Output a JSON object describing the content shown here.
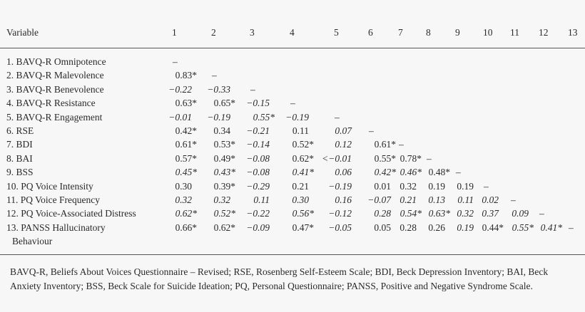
{
  "table": {
    "header_variable": "Variable",
    "column_headers": [
      "1",
      "2",
      "3",
      "4",
      "5",
      "6",
      "7",
      "8",
      "9",
      "10",
      "11",
      "12",
      "13"
    ],
    "rows": [
      {
        "label": "1. BAVQ-R Omnipotence",
        "cells": [
          {
            "v": "–",
            "i": false
          }
        ]
      },
      {
        "label": "2. BAVQ-R Malevolence",
        "cells": [
          {
            "v": "0.83*",
            "i": false
          },
          {
            "v": "–",
            "i": false
          }
        ]
      },
      {
        "label": "3. BAVQ-R Benevolence",
        "cells": [
          {
            "v": "−0.22",
            "i": true
          },
          {
            "v": "−0.33",
            "i": true
          },
          {
            "v": "–",
            "i": false
          }
        ]
      },
      {
        "label": "4. BAVQ-R Resistance",
        "cells": [
          {
            "v": "0.63*",
            "i": false
          },
          {
            "v": "0.65*",
            "i": false
          },
          {
            "v": "−0.15",
            "i": true
          },
          {
            "v": "–",
            "i": false
          }
        ]
      },
      {
        "label": "5. BAVQ-R Engagement",
        "cells": [
          {
            "v": "−0.01",
            "i": true
          },
          {
            "v": "−0.19",
            "i": true
          },
          {
            "v": "0.55*",
            "i": true
          },
          {
            "v": "−0.19",
            "i": true
          },
          {
            "v": "–",
            "i": false
          }
        ]
      },
      {
        "label": "6. RSE",
        "cells": [
          {
            "v": "0.42*",
            "i": false
          },
          {
            "v": "0.34",
            "i": false
          },
          {
            "v": "−0.21",
            "i": true
          },
          {
            "v": "0.11",
            "i": false
          },
          {
            "v": "0.07",
            "i": true
          },
          {
            "v": "–",
            "i": false
          }
        ]
      },
      {
        "label": "7. BDI",
        "cells": [
          {
            "v": "0.61*",
            "i": false
          },
          {
            "v": "0.53*",
            "i": false
          },
          {
            "v": "−0.14",
            "i": true
          },
          {
            "v": "0.52*",
            "i": false
          },
          {
            "v": "0.12",
            "i": true
          },
          {
            "v": "0.61*",
            "i": false
          },
          {
            "v": "–",
            "i": false
          }
        ]
      },
      {
        "label": "8. BAI",
        "cells": [
          {
            "v": "0.57*",
            "i": false
          },
          {
            "v": "0.49*",
            "i": false
          },
          {
            "v": "−0.08",
            "i": true
          },
          {
            "v": "0.62*",
            "i": false
          },
          {
            "v": "<−0.01",
            "i": true
          },
          {
            "v": "0.55*",
            "i": false
          },
          {
            "v": "0.78*",
            "i": false
          },
          {
            "v": "–",
            "i": false
          }
        ]
      },
      {
        "label": "9. BSS",
        "cells": [
          {
            "v": "0.45*",
            "i": true
          },
          {
            "v": "0.43*",
            "i": true
          },
          {
            "v": "−0.08",
            "i": true
          },
          {
            "v": "0.41*",
            "i": true
          },
          {
            "v": "0.06",
            "i": true
          },
          {
            "v": "0.42*",
            "i": true
          },
          {
            "v": "0.46*",
            "i": true
          },
          {
            "v": "0.48*",
            "i": false
          },
          {
            "v": "–",
            "i": false
          }
        ]
      },
      {
        "label": "10. PQ Voice Intensity",
        "cells": [
          {
            "v": "0.30",
            "i": false
          },
          {
            "v": "0.39*",
            "i": false
          },
          {
            "v": "−0.29",
            "i": true
          },
          {
            "v": "0.21",
            "i": false
          },
          {
            "v": "−0.19",
            "i": true
          },
          {
            "v": "0.01",
            "i": false
          },
          {
            "v": "0.32",
            "i": false
          },
          {
            "v": "0.19",
            "i": false
          },
          {
            "v": "0.19",
            "i": false
          },
          {
            "v": "–",
            "i": false
          }
        ]
      },
      {
        "label": "11. PQ Voice Frequency",
        "cells": [
          {
            "v": "0.32",
            "i": true
          },
          {
            "v": "0.32",
            "i": true
          },
          {
            "v": "0.11",
            "i": true
          },
          {
            "v": "0.30",
            "i": true
          },
          {
            "v": "0.16",
            "i": true
          },
          {
            "v": "−0.07",
            "i": true
          },
          {
            "v": "0.21",
            "i": true
          },
          {
            "v": "0.13",
            "i": true
          },
          {
            "v": "0.11",
            "i": true
          },
          {
            "v": "0.02",
            "i": true
          },
          {
            "v": "–",
            "i": false
          }
        ]
      },
      {
        "label": "12. PQ Voice-Associated Distress",
        "cells": [
          {
            "v": "0.62*",
            "i": true
          },
          {
            "v": "0.52*",
            "i": true
          },
          {
            "v": "−0.22",
            "i": true
          },
          {
            "v": "0.56*",
            "i": true
          },
          {
            "v": "−0.12",
            "i": true
          },
          {
            "v": "0.28",
            "i": true
          },
          {
            "v": "0.54*",
            "i": true
          },
          {
            "v": "0.63*",
            "i": true
          },
          {
            "v": "0.32",
            "i": true
          },
          {
            "v": "0.37",
            "i": true
          },
          {
            "v": "0.09",
            "i": true
          },
          {
            "v": "–",
            "i": false
          }
        ]
      },
      {
        "label": "13. PANSS Hallucinatory",
        "label2": "Behaviour",
        "cells": [
          {
            "v": "0.66*",
            "i": false
          },
          {
            "v": "0.62*",
            "i": false
          },
          {
            "v": "−0.09",
            "i": true
          },
          {
            "v": "0.47*",
            "i": false
          },
          {
            "v": "−0.05",
            "i": true
          },
          {
            "v": "0.05",
            "i": false
          },
          {
            "v": "0.28",
            "i": false
          },
          {
            "v": "0.26",
            "i": false
          },
          {
            "v": "0.19",
            "i": true
          },
          {
            "v": "0.44*",
            "i": false
          },
          {
            "v": "0.55*",
            "i": true
          },
          {
            "v": "0.41*",
            "i": true
          },
          {
            "v": "–",
            "i": false
          }
        ]
      }
    ]
  },
  "footnote": "BAVQ-R, Beliefs About Voices Questionnaire – Revised; RSE, Rosenberg Self-Esteem Scale; BDI, Beck Depression Inventory; BAI, Beck Anxiety Inventory; BSS, Beck Scale for Suicide Ideation; PQ, Personal Questionnaire; PANSS, Positive and Negative Syndrome Scale."
}
